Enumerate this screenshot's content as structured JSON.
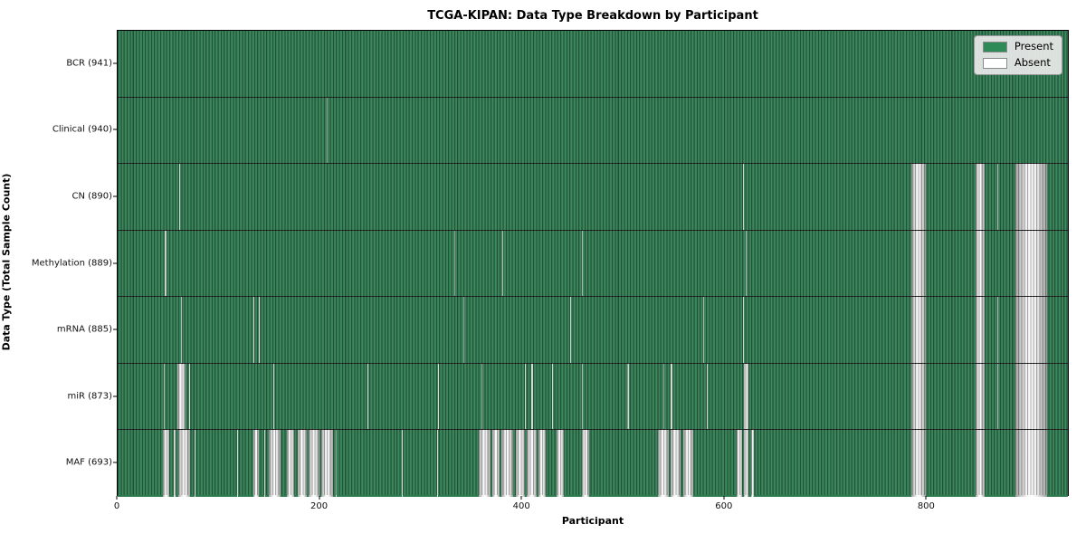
{
  "chart_data": {
    "type": "heatmap",
    "title": "TCGA-KIPAN: Data Type Breakdown by Participant",
    "xlabel": "Participant",
    "ylabel": "Data Type (Total Sample Count)",
    "x_ticks": [
      0,
      200,
      400,
      600,
      800
    ],
    "x_max": 941,
    "grid": false,
    "legend_position": "upper right",
    "colors": {
      "present": "#2e8b57",
      "absent": "#ffffff",
      "row_fill": "#2e7b50",
      "background": "#ffffff"
    },
    "legend": [
      {
        "label": "Present",
        "color": "#2e8b57"
      },
      {
        "label": "Absent",
        "color": "#ffffff"
      }
    ],
    "rows": [
      {
        "label": "BCR (941)",
        "data_type": "BCR",
        "present_count": 941,
        "absent_ranges": []
      },
      {
        "label": "Clinical (940)",
        "data_type": "Clinical",
        "present_count": 940,
        "absent_ranges": [
          [
            207,
            207
          ]
        ]
      },
      {
        "label": "CN (890)",
        "data_type": "CN",
        "present_count": 890,
        "absent_ranges": [
          [
            61,
            61
          ],
          [
            619,
            619
          ],
          [
            786,
            799
          ],
          [
            850,
            858
          ],
          [
            871,
            871
          ],
          [
            889,
            919
          ]
        ]
      },
      {
        "label": "Methylation (889)",
        "data_type": "Methylation",
        "present_count": 889,
        "absent_ranges": [
          [
            47,
            47
          ],
          [
            333,
            333
          ],
          [
            381,
            381
          ],
          [
            460,
            460
          ],
          [
            622,
            622
          ],
          [
            786,
            799
          ],
          [
            850,
            858
          ],
          [
            889,
            919
          ]
        ]
      },
      {
        "label": "mRNA (885)",
        "data_type": "mRNA",
        "present_count": 885,
        "absent_ranges": [
          [
            63,
            63
          ],
          [
            134,
            134
          ],
          [
            140,
            140
          ],
          [
            342,
            342
          ],
          [
            448,
            448
          ],
          [
            580,
            580
          ],
          [
            619,
            619
          ],
          [
            786,
            799
          ],
          [
            850,
            858
          ],
          [
            871,
            871
          ],
          [
            889,
            919
          ]
        ]
      },
      {
        "label": "miR (873)",
        "data_type": "miR",
        "present_count": 873,
        "absent_ranges": [
          [
            46,
            46
          ],
          [
            59,
            66
          ],
          [
            71,
            71
          ],
          [
            154,
            154
          ],
          [
            247,
            247
          ],
          [
            317,
            317
          ],
          [
            360,
            360
          ],
          [
            403,
            403
          ],
          [
            410,
            410
          ],
          [
            430,
            430
          ],
          [
            460,
            460
          ],
          [
            505,
            505
          ],
          [
            540,
            540
          ],
          [
            548,
            548
          ],
          [
            583,
            583
          ],
          [
            620,
            624
          ],
          [
            786,
            799
          ],
          [
            850,
            858
          ],
          [
            871,
            871
          ],
          [
            889,
            919
          ]
        ]
      },
      {
        "label": "MAF (693)",
        "data_type": "MAF",
        "present_count": 693,
        "absent_ranges": [
          [
            45,
            50
          ],
          [
            56,
            56
          ],
          [
            60,
            71
          ],
          [
            76,
            76
          ],
          [
            118,
            118
          ],
          [
            134,
            139
          ],
          [
            145,
            145
          ],
          [
            150,
            160
          ],
          [
            168,
            174
          ],
          [
            178,
            186
          ],
          [
            189,
            199
          ],
          [
            202,
            212
          ],
          [
            216,
            216
          ],
          [
            281,
            281
          ],
          [
            316,
            316
          ],
          [
            358,
            368
          ],
          [
            371,
            377
          ],
          [
            380,
            391
          ],
          [
            394,
            402
          ],
          [
            405,
            414
          ],
          [
            417,
            423
          ],
          [
            435,
            441
          ],
          [
            460,
            466
          ],
          [
            535,
            545
          ],
          [
            548,
            556
          ],
          [
            560,
            569
          ],
          [
            613,
            617
          ],
          [
            620,
            624
          ],
          [
            627,
            629
          ],
          [
            786,
            799
          ],
          [
            850,
            858
          ],
          [
            889,
            919
          ]
        ]
      }
    ]
  }
}
